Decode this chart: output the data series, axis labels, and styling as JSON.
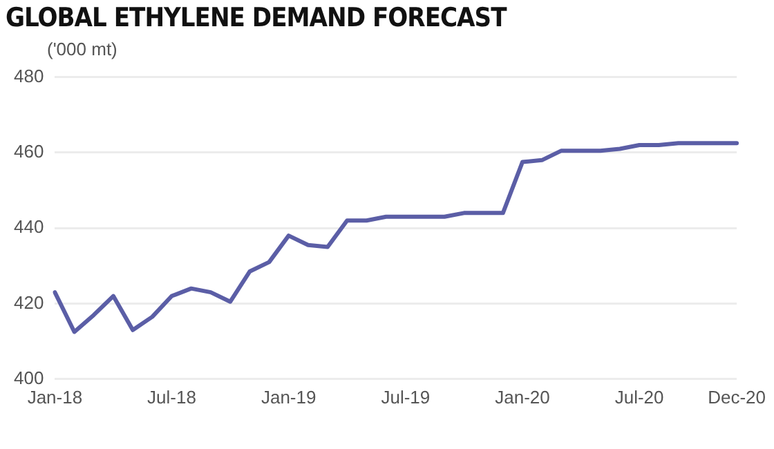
{
  "chart_data": {
    "type": "line",
    "title": "GLOBAL ETHYLENE DEMAND FORECAST",
    "ylabel": "('000 mt)",
    "categories": [
      "Jan-18",
      null,
      null,
      null,
      null,
      null,
      "Jul-18",
      null,
      null,
      null,
      null,
      null,
      "Jan-19",
      null,
      null,
      null,
      null,
      null,
      "Jul-19",
      null,
      null,
      null,
      null,
      null,
      "Jan-20",
      null,
      null,
      null,
      null,
      null,
      "Jul-20",
      null,
      null,
      null,
      null,
      "Dec-20"
    ],
    "series": [
      {
        "color": "#5b5ea6",
        "values": [
          423,
          412.5,
          417,
          422,
          413,
          416.5,
          422,
          424,
          423,
          420.5,
          428.5,
          431,
          438,
          435.5,
          435,
          442,
          442,
          443,
          443,
          443,
          443,
          444,
          444,
          444,
          457.5,
          458,
          460.5,
          460.5,
          460.5,
          461,
          462,
          462,
          462.5,
          462.5,
          462.5,
          462.5
        ]
      }
    ],
    "ylim": [
      400,
      480
    ],
    "yticks": [
      400,
      420,
      440,
      460,
      480
    ],
    "grid": "y",
    "legend": false,
    "marker": "none",
    "line_style": "solid"
  }
}
